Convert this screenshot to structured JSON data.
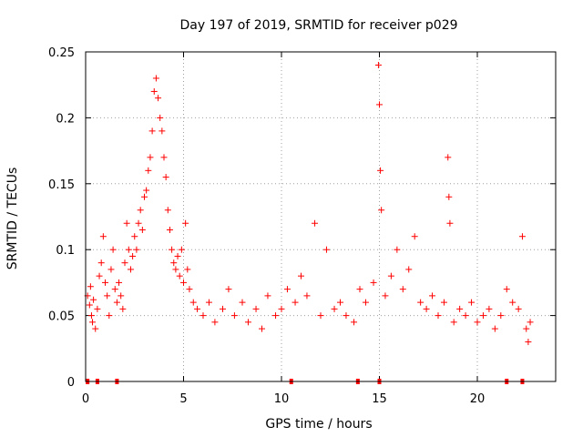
{
  "chart_data": {
    "type": "scatter",
    "title": "Day 197 of 2019, SRMTID for receiver p029",
    "xlabel": "GPS time / hours",
    "ylabel": "SRMTID / TECUs",
    "xlim": [
      0,
      24
    ],
    "ylim": [
      0,
      0.25
    ],
    "xticks": [
      0,
      5,
      10,
      15,
      20
    ],
    "yticks": [
      0,
      0.05,
      0.1,
      0.15,
      0.2,
      0.25
    ],
    "xtick_labels": [
      "0",
      "5",
      "10",
      "15",
      "20"
    ],
    "ytick_labels": [
      "0",
      "0.05",
      "0.1",
      "0.15",
      "0.2",
      "0.25"
    ],
    "grid": true,
    "marker": "+",
    "color": "#ff0000",
    "series": [
      {
        "name": "SRMTID",
        "points": [
          [
            0.1,
            0.065
          ],
          [
            0.2,
            0.058
          ],
          [
            0.25,
            0.072
          ],
          [
            0.3,
            0.05
          ],
          [
            0.35,
            0.045
          ],
          [
            0.4,
            0.062
          ],
          [
            0.5,
            0.04
          ],
          [
            0.6,
            0.055
          ],
          [
            0.7,
            0.08
          ],
          [
            0.8,
            0.09
          ],
          [
            0.9,
            0.11
          ],
          [
            1.0,
            0.075
          ],
          [
            1.1,
            0.065
          ],
          [
            1.2,
            0.05
          ],
          [
            1.3,
            0.085
          ],
          [
            1.4,
            0.1
          ],
          [
            1.5,
            0.07
          ],
          [
            1.6,
            0.06
          ],
          [
            1.7,
            0.075
          ],
          [
            1.8,
            0.065
          ],
          [
            1.9,
            0.055
          ],
          [
            2.0,
            0.09
          ],
          [
            2.1,
            0.12
          ],
          [
            2.2,
            0.1
          ],
          [
            2.3,
            0.085
          ],
          [
            2.4,
            0.095
          ],
          [
            2.5,
            0.11
          ],
          [
            2.6,
            0.1
          ],
          [
            2.7,
            0.12
          ],
          [
            2.8,
            0.13
          ],
          [
            2.9,
            0.115
          ],
          [
            3.0,
            0.14
          ],
          [
            3.1,
            0.145
          ],
          [
            3.2,
            0.16
          ],
          [
            3.3,
            0.17
          ],
          [
            3.4,
            0.19
          ],
          [
            3.5,
            0.22
          ],
          [
            3.6,
            0.23
          ],
          [
            3.7,
            0.215
          ],
          [
            3.8,
            0.2
          ],
          [
            3.9,
            0.19
          ],
          [
            4.0,
            0.17
          ],
          [
            4.1,
            0.155
          ],
          [
            4.2,
            0.13
          ],
          [
            4.3,
            0.115
          ],
          [
            4.4,
            0.1
          ],
          [
            4.5,
            0.09
          ],
          [
            4.6,
            0.085
          ],
          [
            4.7,
            0.095
          ],
          [
            4.8,
            0.08
          ],
          [
            4.9,
            0.1
          ],
          [
            5.0,
            0.075
          ],
          [
            5.1,
            0.12
          ],
          [
            5.2,
            0.085
          ],
          [
            5.3,
            0.07
          ],
          [
            5.5,
            0.06
          ],
          [
            5.7,
            0.055
          ],
          [
            6.0,
            0.05
          ],
          [
            6.3,
            0.06
          ],
          [
            6.6,
            0.045
          ],
          [
            7.0,
            0.055
          ],
          [
            7.3,
            0.07
          ],
          [
            7.6,
            0.05
          ],
          [
            8.0,
            0.06
          ],
          [
            8.3,
            0.045
          ],
          [
            8.7,
            0.055
          ],
          [
            9.0,
            0.04
          ],
          [
            9.3,
            0.065
          ],
          [
            9.7,
            0.05
          ],
          [
            10.0,
            0.055
          ],
          [
            10.3,
            0.07
          ],
          [
            10.7,
            0.06
          ],
          [
            11.0,
            0.08
          ],
          [
            11.3,
            0.065
          ],
          [
            11.7,
            0.12
          ],
          [
            12.0,
            0.05
          ],
          [
            12.3,
            0.1
          ],
          [
            12.7,
            0.055
          ],
          [
            13.0,
            0.06
          ],
          [
            13.3,
            0.05
          ],
          [
            13.7,
            0.045
          ],
          [
            14.0,
            0.07
          ],
          [
            14.3,
            0.06
          ],
          [
            14.7,
            0.075
          ],
          [
            14.95,
            0.24
          ],
          [
            15.0,
            0.21
          ],
          [
            15.05,
            0.16
          ],
          [
            15.1,
            0.13
          ],
          [
            15.3,
            0.065
          ],
          [
            15.6,
            0.08
          ],
          [
            15.9,
            0.1
          ],
          [
            16.2,
            0.07
          ],
          [
            16.5,
            0.085
          ],
          [
            16.8,
            0.11
          ],
          [
            17.1,
            0.06
          ],
          [
            17.4,
            0.055
          ],
          [
            17.7,
            0.065
          ],
          [
            18.0,
            0.05
          ],
          [
            18.3,
            0.06
          ],
          [
            18.5,
            0.17
          ],
          [
            18.55,
            0.14
          ],
          [
            18.6,
            0.12
          ],
          [
            18.8,
            0.045
          ],
          [
            19.1,
            0.055
          ],
          [
            19.4,
            0.05
          ],
          [
            19.7,
            0.06
          ],
          [
            20.0,
            0.045
          ],
          [
            20.3,
            0.05
          ],
          [
            20.6,
            0.055
          ],
          [
            20.9,
            0.04
          ],
          [
            21.2,
            0.05
          ],
          [
            21.5,
            0.07
          ],
          [
            21.8,
            0.06
          ],
          [
            22.1,
            0.055
          ],
          [
            22.3,
            0.11
          ],
          [
            22.5,
            0.04
          ],
          [
            22.6,
            0.03
          ],
          [
            22.7,
            0.045
          ]
        ]
      }
    ],
    "zero_markers_x": [
      0.1,
      0.6,
      1.6,
      10.5,
      13.9,
      15.0,
      21.5,
      22.3
    ]
  }
}
